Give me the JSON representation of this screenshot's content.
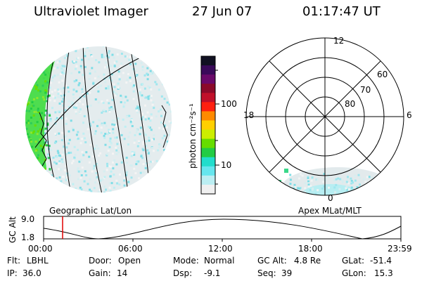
{
  "header": {
    "title": "Ultraviolet Imager",
    "date": "27 Jun 07",
    "time": "01:17:47 UT"
  },
  "colorbar": {
    "unit_label": "photon cm⁻²s⁻¹",
    "ticks": [
      "100",
      "10"
    ],
    "colors": [
      "#111122",
      "#3a0a5a",
      "#6a0a6a",
      "#8b0a2a",
      "#c0102a",
      "#ff2010",
      "#ff8a00",
      "#ffd000",
      "#ccee00",
      "#66dd00",
      "#22cc44",
      "#22ddcc",
      "#66e6ee",
      "#bbeef2",
      "#f0f0f0"
    ]
  },
  "globe": {
    "label": "Geographic Lat/Lon"
  },
  "polar": {
    "label": "Apex MLat/MLT",
    "mlt_labels": {
      "top": "12",
      "left": "18",
      "right": "6",
      "bottom": "0"
    },
    "lat_labels": [
      "60",
      "70",
      "80"
    ]
  },
  "altitude_plot": {
    "y_title": "GC Alt",
    "y_ticks": [
      "9.0",
      "1.8"
    ],
    "x_ticks": [
      "00:00",
      "06:00",
      "12:00",
      "18:00",
      "23:59"
    ],
    "marker_color": "#e00000"
  },
  "info": {
    "flt_label": "Flt:",
    "flt_value": "LBHL",
    "ip_label": "IP:",
    "ip_value": "36.0",
    "door_label": "Door:",
    "door_value": "Open",
    "gain_label": "Gain:",
    "gain_value": "14",
    "mode_label": "Mode:",
    "mode_value": "Normal",
    "dsp_label": "Dsp:",
    "dsp_value": "-9.1",
    "gcalt_label": "GC Alt:",
    "gcalt_value": "4.8 Re",
    "seq_label": "Seq:",
    "seq_value": "39",
    "glat_label": "GLat:",
    "glat_value": "-51.4",
    "glon_label": "GLon:",
    "glon_value": "15.3"
  }
}
